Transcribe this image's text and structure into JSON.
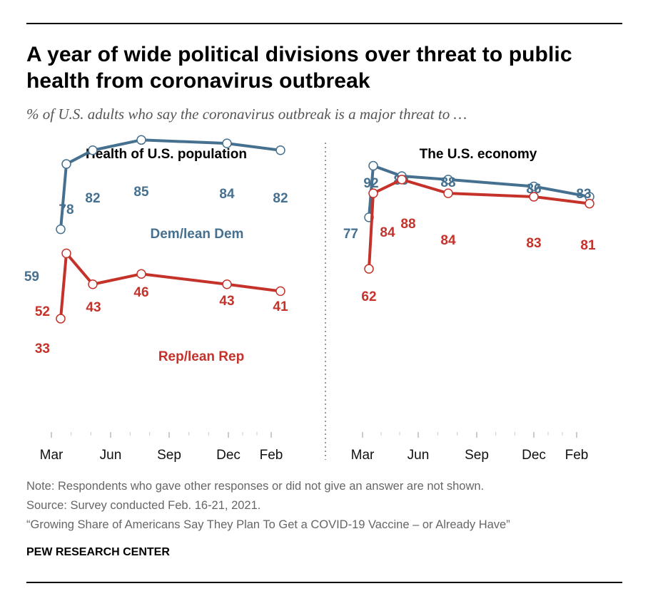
{
  "title": "A year of wide political divisions over threat to public health from coronavirus outbreak",
  "subtitle": "% of U.S. adults who say the coronavirus outbreak is a major threat to …",
  "colors": {
    "dem": "#46708f",
    "rep": "#c4322a",
    "axis": "#999999",
    "divider": "#777777"
  },
  "notes": {
    "note": "Note: Respondents who gave other responses or did not give an answer are not shown.",
    "source": "Source: Survey conducted Feb. 16-21, 2021.",
    "report": "“Growing Share of Americans Say They Plan To Get a COVID-19 Vaccine – or Already Have”"
  },
  "footer": "PEW RESEARCH CENTER",
  "chart_data": [
    {
      "type": "line",
      "title": "Health of U.S. population",
      "x_ticks": [
        "Mar",
        "Jun",
        "Sep",
        "Dec",
        "Feb"
      ],
      "x": [
        "2020-03",
        "2020-03",
        "2020-05",
        "2020-07",
        "2020-11",
        "2021-02"
      ],
      "ylim": [
        0,
        100
      ],
      "grid": false,
      "series": [
        {
          "name": "Dem/lean Dem",
          "key": "dem",
          "values": [
            59,
            78,
            82,
            85,
            84,
            82
          ]
        },
        {
          "name": "Rep/lean Rep",
          "key": "rep",
          "values": [
            33,
            52,
            43,
            46,
            43,
            41
          ]
        }
      ]
    },
    {
      "type": "line",
      "title": "The U.S. economy",
      "x_ticks": [
        "Mar",
        "Jun",
        "Sep",
        "Dec",
        "Feb"
      ],
      "x": [
        "2020-03",
        "2020-03",
        "2020-04",
        "2020-08",
        "2020-12",
        "2021-02"
      ],
      "ylim": [
        0,
        100
      ],
      "grid": false,
      "series": [
        {
          "name": "",
          "key": "dem",
          "values": [
            77,
            92,
            89,
            88,
            86,
            83
          ]
        },
        {
          "name": "",
          "key": "rep",
          "values": [
            62,
            84,
            88,
            84,
            83,
            81
          ]
        }
      ]
    }
  ]
}
